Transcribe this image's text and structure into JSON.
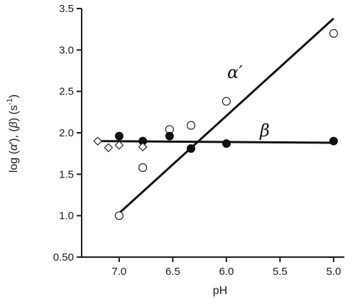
{
  "chart_data": {
    "type": "scatter",
    "title": "",
    "xlabel": "pH",
    "ylabel_parts": {
      "prefix": "log (",
      "alpha": "α",
      "alpha_mark": "′",
      "mid": "), (",
      "beta": "β",
      "close": ") (s",
      "exp": "-1",
      "end": ")"
    },
    "x_axis": {
      "reversed": true,
      "range": [
        7.35,
        4.9
      ],
      "ticks": [
        7.0,
        6.5,
        6.0,
        5.5,
        5.0
      ],
      "tick_labels": [
        "7.0",
        "6.5",
        "6.0",
        "5.5",
        "5.0"
      ]
    },
    "y_axis": {
      "range": [
        0.5,
        3.5
      ],
      "ticks": [
        0.5,
        1.0,
        1.5,
        2.0,
        2.5,
        3.0,
        3.5
      ],
      "tick_labels": [
        "0.50",
        "1.0",
        "1.5",
        "2.0",
        "2.5",
        "3.0",
        "3.5"
      ]
    },
    "grid": false,
    "series": [
      {
        "name": "α′",
        "marker": "open-circle",
        "points": [
          {
            "x": 7.0,
            "y": 1.0
          },
          {
            "x": 6.78,
            "y": 1.58
          },
          {
            "x": 6.53,
            "y": 2.04
          },
          {
            "x": 6.33,
            "y": 2.09
          },
          {
            "x": 6.0,
            "y": 2.38
          },
          {
            "x": 5.0,
            "y": 3.2
          }
        ],
        "fit": {
          "x": [
            7.0,
            5.0
          ],
          "y": [
            1.03,
            3.38
          ]
        }
      },
      {
        "name": "β",
        "marker": "filled-circle",
        "points": [
          {
            "x": 7.0,
            "y": 1.96
          },
          {
            "x": 6.78,
            "y": 1.9
          },
          {
            "x": 6.53,
            "y": 1.96
          },
          {
            "x": 6.33,
            "y": 1.81
          },
          {
            "x": 6.0,
            "y": 1.87
          },
          {
            "x": 5.0,
            "y": 1.9
          }
        ],
        "fit": {
          "x": [
            7.2,
            5.0
          ],
          "y": [
            1.9,
            1.88
          ]
        }
      },
      {
        "name": "",
        "marker": "open-diamond",
        "points": [
          {
            "x": 7.2,
            "y": 1.9
          },
          {
            "x": 7.1,
            "y": 1.82
          },
          {
            "x": 7.0,
            "y": 1.85
          },
          {
            "x": 6.78,
            "y": 1.83
          }
        ]
      }
    ]
  }
}
